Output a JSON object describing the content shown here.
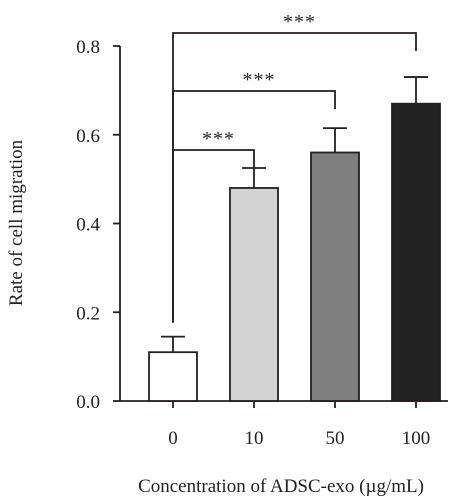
{
  "chart_data": {
    "type": "bar",
    "title": "",
    "xlabel": "Concentration of ADSC-exo (µg/mL)",
    "ylabel": "Rate of cell migration",
    "categories": [
      "0",
      "10",
      "50",
      "100"
    ],
    "values": [
      0.11,
      0.48,
      0.56,
      0.67
    ],
    "errors": [
      0.035,
      0.045,
      0.055,
      0.06
    ],
    "bar_colors": [
      "#ffffff",
      "#d3d3d3",
      "#7f7f7f",
      "#222222"
    ],
    "ylim": [
      0.0,
      0.8
    ],
    "yticks": [
      "0.0",
      "0.2",
      "0.4",
      "0.6",
      "0.8"
    ],
    "grid": false,
    "legend": "none",
    "significance": [
      {
        "from": "0",
        "to": "10",
        "label": "***"
      },
      {
        "from": "0",
        "to": "50",
        "label": "***"
      },
      {
        "from": "0",
        "to": "100",
        "label": "***"
      }
    ]
  }
}
